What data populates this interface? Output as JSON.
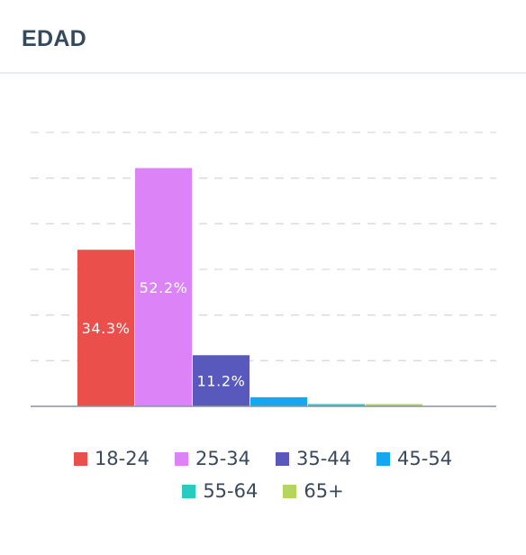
{
  "header": {
    "title": "EDAD"
  },
  "chart_data": {
    "type": "bar",
    "title": "EDAD",
    "categories": [
      "18-24",
      "25-34",
      "35-44",
      "45-54",
      "55-64",
      "65+"
    ],
    "values": [
      34.3,
      52.2,
      11.2,
      2.0,
      0.5,
      0.5
    ],
    "data_labels": [
      "34.3%",
      "52.2%",
      "11.2%",
      "",
      "",
      ""
    ],
    "colors": [
      "#eb4f4c",
      "#dc84f7",
      "#5958bd",
      "#14a8ef",
      "#27cbbf",
      "#b5d65a"
    ],
    "ylim": [
      0,
      60
    ],
    "grid": true,
    "legend_position": "bottom",
    "xlabel": "",
    "ylabel": ""
  }
}
